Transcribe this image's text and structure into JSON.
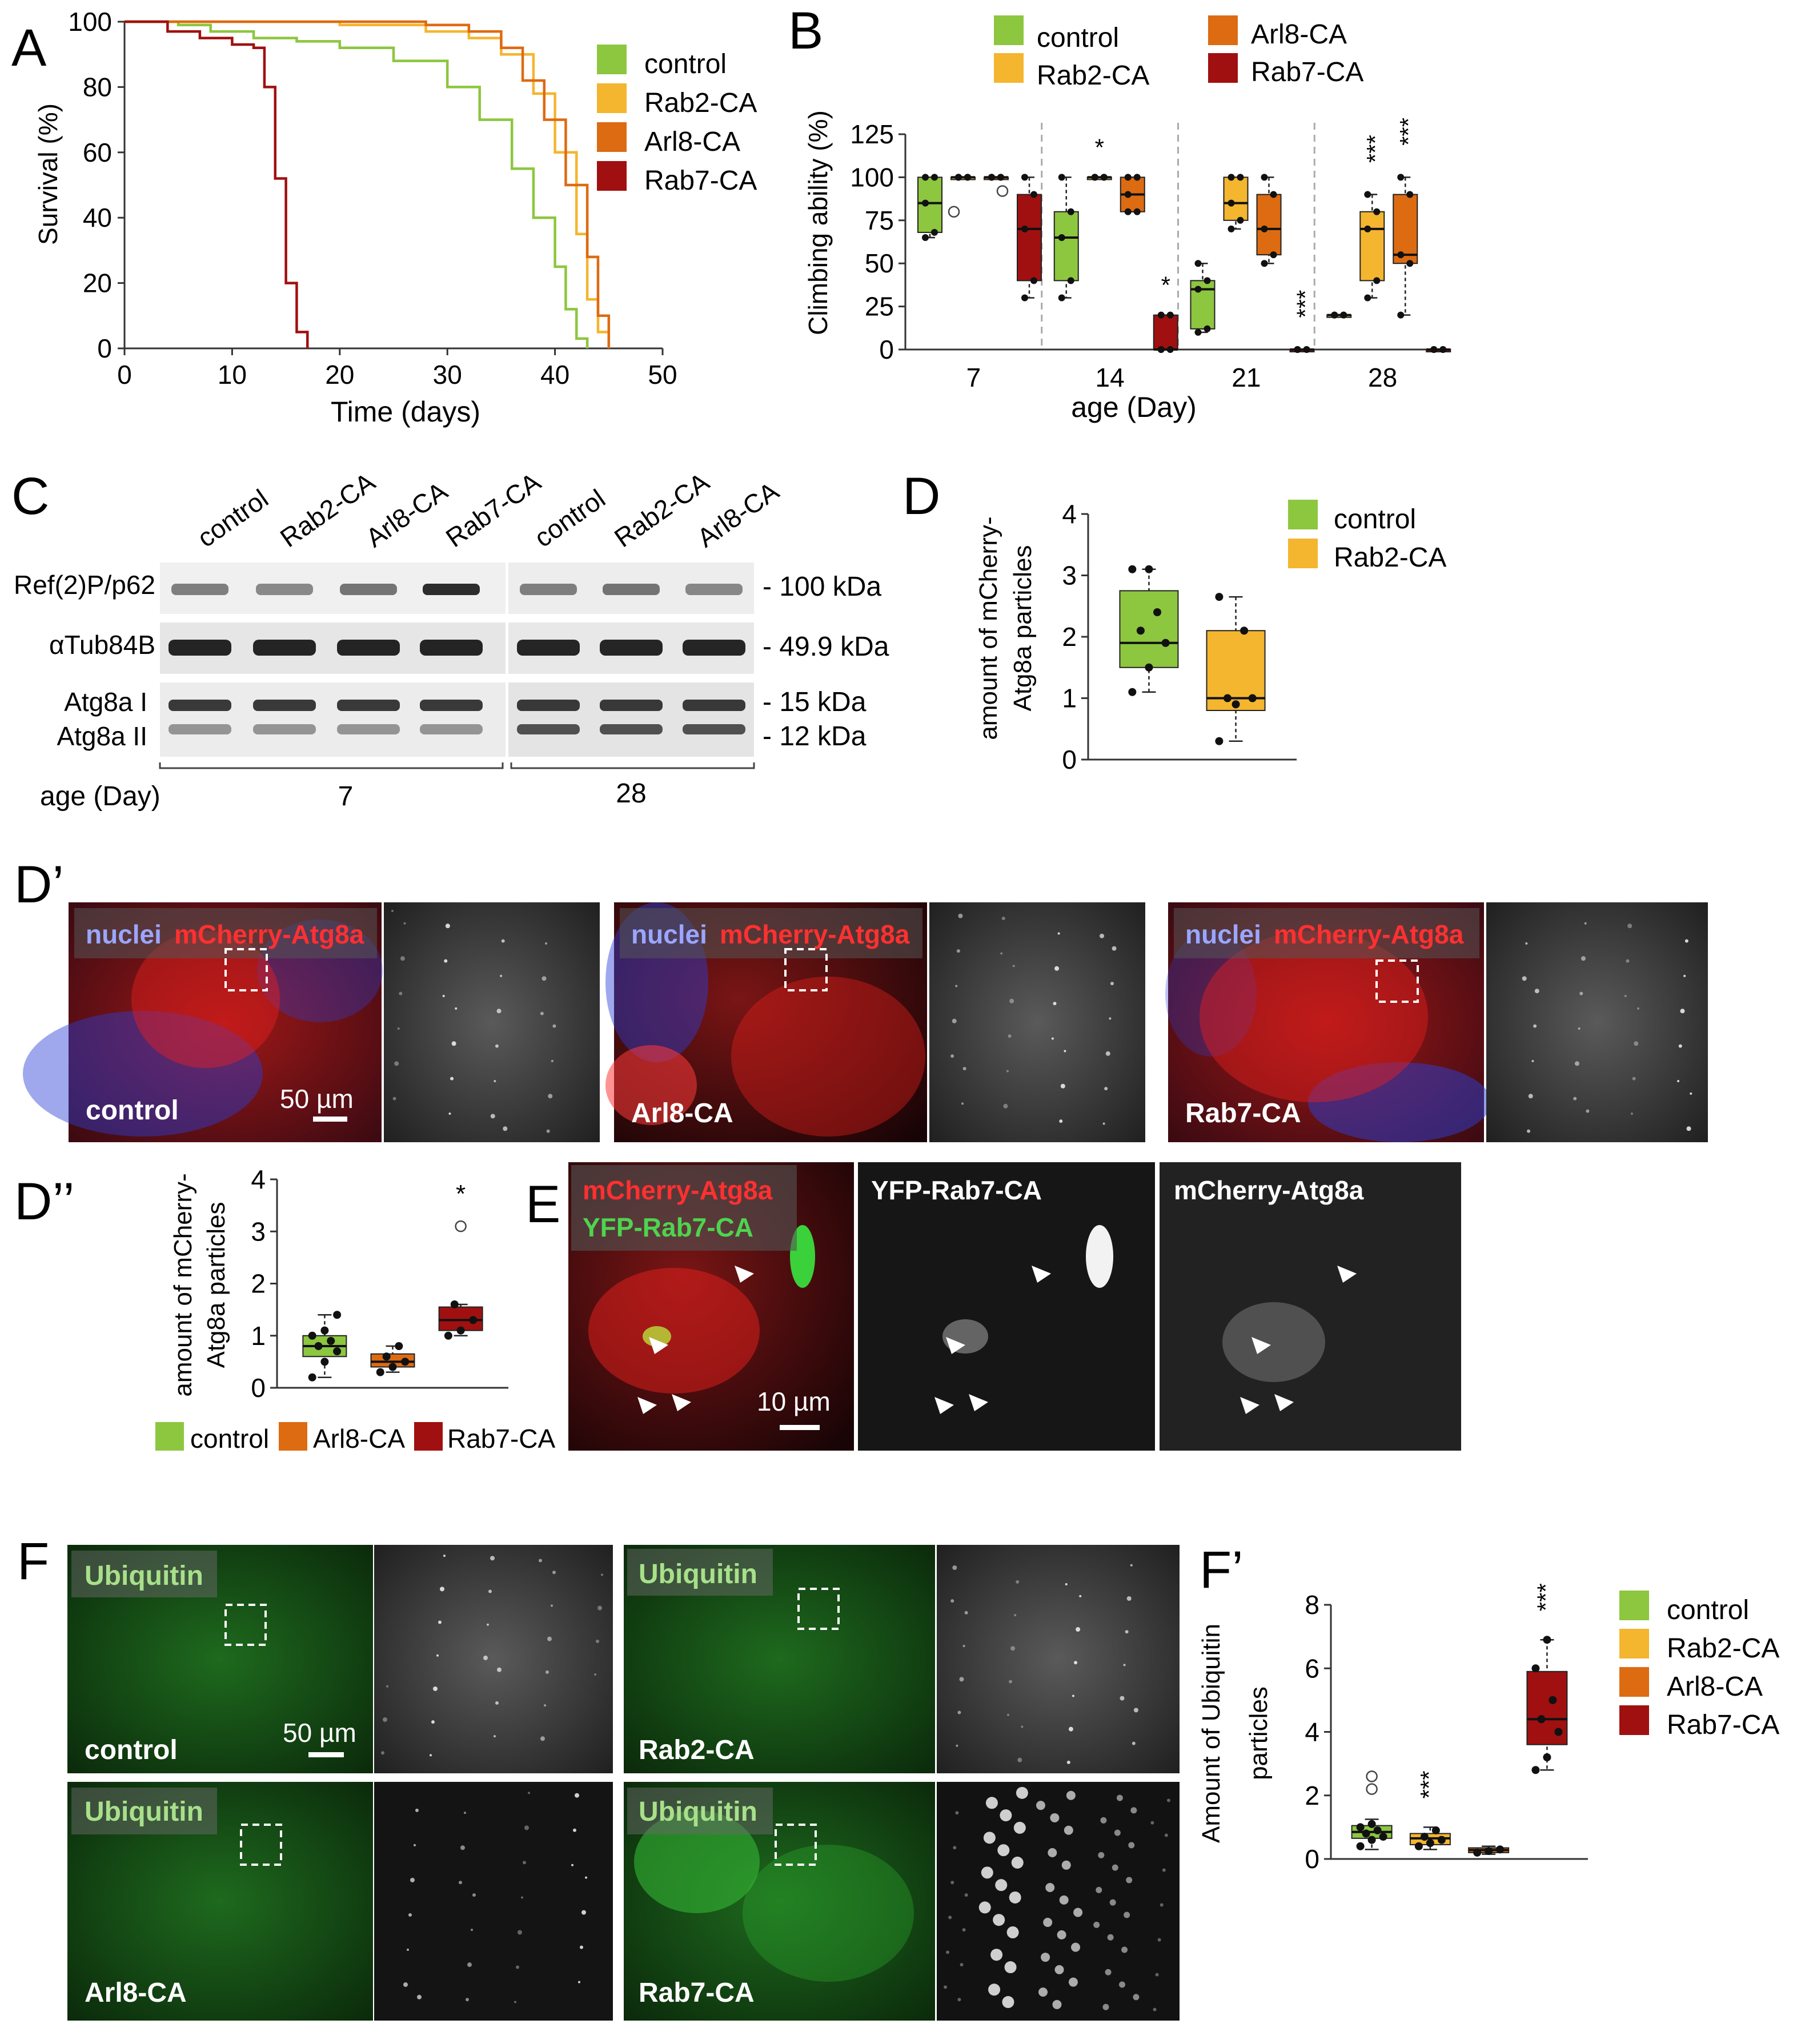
{
  "colors": {
    "control": "#8dc63f",
    "rab2": "#f4b52f",
    "arl8": "#dd6b12",
    "rab7": "#a01010",
    "axis": "#333333",
    "red": "#e8201c",
    "green": "#2fbf2f",
    "blue": "#2a3fd6"
  },
  "panelA": {
    "letter": "A",
    "ylabel": "Survival (%)",
    "xlabel": "Time (days)",
    "xticks": [
      "0",
      "10",
      "20",
      "30",
      "40",
      "50"
    ],
    "yticks": [
      "0",
      "20",
      "40",
      "60",
      "80",
      "100"
    ],
    "legend": [
      "control",
      "Rab2-CA",
      "Arl8-CA",
      "Rab7-CA"
    ]
  },
  "panelB": {
    "letter": "B",
    "ylabel": "Climbing ability (%)",
    "xlabel": "age (Day)",
    "xticks": [
      "7",
      "14",
      "21",
      "28"
    ],
    "yticks": [
      "0",
      "25",
      "50",
      "75",
      "100",
      "125"
    ],
    "legend": [
      "control",
      "Rab2-CA",
      "Arl8-CA",
      "Rab7-CA"
    ],
    "sig": [
      "*",
      "*",
      "***",
      "***",
      "***",
      "***",
      "***"
    ]
  },
  "panelC": {
    "letter": "C",
    "lanes": [
      "control",
      "Rab2-CA",
      "Arl8-CA",
      "Rab7-CA",
      "control",
      "Rab2-CA",
      "Arl8-CA"
    ],
    "rows": [
      "Ref(2)P/p62",
      "αTub84B",
      "Atg8a I",
      "Atg8a II"
    ],
    "kda": [
      "- 100 kDa",
      "- 49.9 kDa",
      "- 15 kDa",
      "- 12 kDa"
    ],
    "age_label": "age (Day)",
    "ages": [
      "7",
      "28"
    ]
  },
  "panelD": {
    "letter": "D",
    "ylabel1": "amount of mCherry-",
    "ylabel2": "Atg8a particles",
    "yticks": [
      "0",
      "1",
      "2",
      "3",
      "4"
    ],
    "legend": [
      "control",
      "Rab2-CA"
    ]
  },
  "panelDp": {
    "letter": "D’",
    "tag_nuclei": "nuclei",
    "tag_mcherry": "mCherry-Atg8a",
    "labels": [
      "control",
      "Arl8-CA",
      "Rab7-CA"
    ],
    "scale": "50 µm"
  },
  "panelDpp": {
    "letter": "D’’",
    "ylabel1": "amount of mCherry-",
    "ylabel2": "Atg8a particles",
    "yticks": [
      "0",
      "1",
      "2",
      "3",
      "4"
    ],
    "legend": [
      "control",
      "Arl8-CA",
      "Rab7-CA"
    ],
    "sig": "*"
  },
  "panelE": {
    "letter": "E",
    "tag1": "mCherry-Atg8a",
    "tag2": "YFP-Rab7-CA",
    "title2": "YFP-Rab7-CA",
    "title3": "mCherry-Atg8a",
    "scale": "10 µm"
  },
  "panelF": {
    "letter": "F",
    "tag": "Ubiquitin",
    "labels": [
      "control",
      "Rab2-CA",
      "Arl8-CA",
      "Rab7-CA"
    ],
    "scale": "50 µm"
  },
  "panelFp": {
    "letter": "F’",
    "ylabel1": "Amount of Ubiquitin",
    "ylabel2": "particles",
    "yticks": [
      "0",
      "2",
      "4",
      "6",
      "8"
    ],
    "legend": [
      "control",
      "Rab2-CA",
      "Arl8-CA",
      "Rab7-CA"
    ],
    "sig": [
      "***",
      "***"
    ]
  },
  "chart_data": [
    {
      "type": "line",
      "panel": "A",
      "ylabel": "Survival (%)",
      "xlabel": "Time (days)",
      "xlim": [
        0,
        50
      ],
      "ylim": [
        0,
        100
      ],
      "series": [
        {
          "name": "control",
          "x": [
            0,
            5,
            8,
            12,
            16,
            20,
            25,
            30,
            33,
            36,
            38,
            40,
            41,
            42,
            43
          ],
          "y": [
            100,
            99,
            97,
            95,
            94,
            92,
            88,
            80,
            70,
            55,
            40,
            25,
            12,
            3,
            0
          ]
        },
        {
          "name": "Rab2-CA",
          "x": [
            0,
            10,
            20,
            28,
            32,
            35,
            38,
            40,
            42,
            43,
            44,
            45
          ],
          "y": [
            100,
            100,
            99,
            97,
            95,
            90,
            78,
            60,
            35,
            15,
            5,
            0
          ]
        },
        {
          "name": "Arl8-CA",
          "x": [
            0,
            10,
            20,
            28,
            32,
            35,
            37,
            39,
            41,
            43,
            44,
            45
          ],
          "y": [
            100,
            100,
            100,
            99,
            97,
            92,
            82,
            70,
            50,
            28,
            10,
            0
          ]
        },
        {
          "name": "Rab7-CA",
          "x": [
            0,
            4,
            7,
            10,
            12,
            13,
            14,
            15,
            16,
            17
          ],
          "y": [
            100,
            97,
            95,
            93,
            92,
            80,
            52,
            20,
            5,
            0
          ]
        }
      ]
    },
    {
      "type": "box",
      "panel": "B",
      "ylabel": "Climbing ability (%)",
      "xlabel": "age (Day)",
      "categories": [
        "7",
        "14",
        "21",
        "28"
      ],
      "ylim": [
        0,
        125
      ],
      "series": [
        {
          "name": "control",
          "boxes": [
            {
              "min": 65,
              "q1": 68,
              "med": 85,
              "q3": 100,
              "max": 100
            },
            {
              "min": 30,
              "q1": 40,
              "med": 65,
              "q3": 80,
              "max": 100
            },
            {
              "min": 10,
              "q1": 12,
              "med": 35,
              "q3": 40,
              "max": 50
            },
            {
              "min": 20,
              "q1": 20,
              "med": 20,
              "q3": 20,
              "max": 20
            }
          ]
        },
        {
          "name": "Rab2-CA",
          "boxes": [
            {
              "min": 100,
              "q1": 100,
              "med": 100,
              "q3": 100,
              "max": 100
            },
            {
              "min": 100,
              "q1": 100,
              "med": 100,
              "q3": 100,
              "max": 100
            },
            {
              "min": 70,
              "q1": 75,
              "med": 85,
              "q3": 100,
              "max": 100
            },
            {
              "min": 30,
              "q1": 40,
              "med": 70,
              "q3": 80,
              "max": 90
            }
          ]
        },
        {
          "name": "Arl8-CA",
          "boxes": [
            {
              "min": 100,
              "q1": 100,
              "med": 100,
              "q3": 100,
              "max": 100
            },
            {
              "min": 80,
              "q1": 80,
              "med": 90,
              "q3": 100,
              "max": 100
            },
            {
              "min": 50,
              "q1": 55,
              "med": 70,
              "q3": 90,
              "max": 100
            },
            {
              "min": 20,
              "q1": 50,
              "med": 55,
              "q3": 90,
              "max": 100
            }
          ]
        },
        {
          "name": "Rab7-CA",
          "boxes": [
            {
              "min": 30,
              "q1": 40,
              "med": 70,
              "q3": 90,
              "max": 100
            },
            {
              "min": 0,
              "q1": 0,
              "med": 0,
              "q3": 20,
              "max": 20
            },
            {
              "min": 0,
              "q1": 0,
              "med": 0,
              "q3": 0,
              "max": 0
            },
            {
              "min": 0,
              "q1": 0,
              "med": 0,
              "q3": 0,
              "max": 0
            }
          ]
        }
      ]
    },
    {
      "type": "box",
      "panel": "D",
      "ylabel": "amount of mCherry-Atg8a particles",
      "ylim": [
        0,
        4
      ],
      "series": [
        {
          "name": "control",
          "box": {
            "min": 1.1,
            "q1": 1.5,
            "med": 1.9,
            "q3": 2.75,
            "max": 3.1
          },
          "points": [
            1.1,
            1.5,
            1.9,
            2.1,
            2.4,
            3.1,
            3.1
          ]
        },
        {
          "name": "Rab2-CA",
          "box": {
            "min": 0.3,
            "q1": 0.8,
            "med": 1.0,
            "q3": 2.1,
            "max": 2.65
          },
          "points": [
            0.3,
            0.9,
            1.0,
            1.0,
            2.1,
            2.65
          ]
        }
      ]
    },
    {
      "type": "box",
      "panel": "D''",
      "ylabel": "amount of mCherry-Atg8a particles",
      "ylim": [
        0,
        4
      ],
      "series": [
        {
          "name": "control",
          "box": {
            "min": 0.2,
            "q1": 0.6,
            "med": 0.8,
            "q3": 1.0,
            "max": 1.4
          },
          "points": [
            0.2,
            0.5,
            0.7,
            0.8,
            0.9,
            1.0,
            1.1,
            1.4
          ]
        },
        {
          "name": "Arl8-CA",
          "box": {
            "min": 0.3,
            "q1": 0.4,
            "med": 0.5,
            "q3": 0.65,
            "max": 0.8
          },
          "points": [
            0.3,
            0.4,
            0.5,
            0.6,
            0.8
          ]
        },
        {
          "name": "Rab7-CA",
          "box": {
            "min": 1.0,
            "q1": 1.1,
            "med": 1.3,
            "q3": 1.55,
            "max": 1.6
          },
          "points": [
            1.0,
            1.1,
            1.3,
            1.6
          ],
          "outliers": [
            3.1
          ]
        }
      ]
    },
    {
      "type": "box",
      "panel": "F'",
      "ylabel": "Amount of Ubiquitin particles",
      "ylim": [
        0,
        8
      ],
      "series": [
        {
          "name": "control",
          "box": {
            "min": 0.3,
            "q1": 0.65,
            "med": 0.85,
            "q3": 1.05,
            "max": 1.25
          },
          "points": [
            0.4,
            0.6,
            0.7,
            0.8,
            0.9,
            1.0,
            1.1
          ],
          "outliers": [
            2.2,
            2.6
          ]
        },
        {
          "name": "Rab2-CA",
          "box": {
            "min": 0.3,
            "q1": 0.45,
            "med": 0.65,
            "q3": 0.8,
            "max": 1.0
          },
          "points": [
            0.4,
            0.5,
            0.6,
            0.7,
            0.9
          ]
        },
        {
          "name": "Arl8-CA",
          "box": {
            "min": 0.15,
            "q1": 0.2,
            "med": 0.28,
            "q3": 0.35,
            "max": 0.4
          },
          "points": [
            0.2,
            0.25,
            0.3
          ]
        },
        {
          "name": "Rab7-CA",
          "box": {
            "min": 2.8,
            "q1": 3.6,
            "med": 4.4,
            "q3": 5.9,
            "max": 6.9
          },
          "points": [
            2.8,
            3.2,
            4.0,
            4.4,
            5.0,
            6.0,
            6.9
          ]
        }
      ]
    }
  ]
}
